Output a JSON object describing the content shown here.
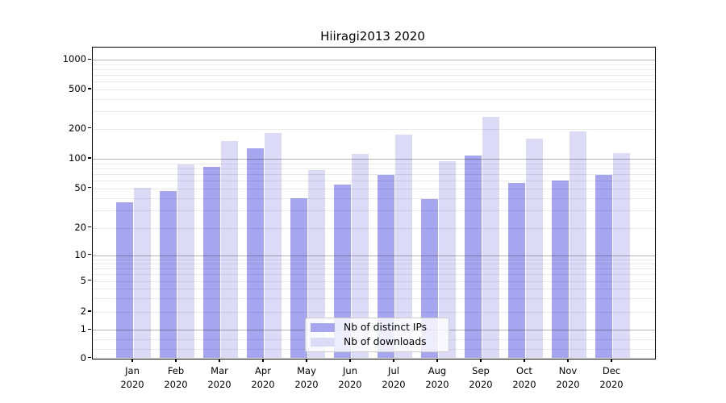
{
  "chart_data": {
    "type": "bar",
    "title": "Hiiragi2013 2020",
    "categories": [
      "Jan 2020",
      "Feb 2020",
      "Mar 2020",
      "Apr 2020",
      "May 2020",
      "Jun 2020",
      "Jul 2020",
      "Aug 2020",
      "Sep 2020",
      "Oct 2020",
      "Nov 2020",
      "Dec 2020"
    ],
    "months": [
      "Jan",
      "Feb",
      "Mar",
      "Apr",
      "May",
      "Jun",
      "Jul",
      "Aug",
      "Sep",
      "Oct",
      "Nov",
      "Dec"
    ],
    "year": "2020",
    "series": [
      {
        "name": "Nb of distinct IPs",
        "color": "#a6a6f0",
        "values": [
          36,
          47,
          83,
          128,
          40,
          55,
          69,
          39,
          107,
          57,
          60,
          69
        ]
      },
      {
        "name": "Nb of downloads",
        "color": "#dbdbf8",
        "values": [
          51,
          87,
          150,
          181,
          77,
          112,
          176,
          94,
          263,
          160,
          187,
          113
        ]
      }
    ],
    "xlabel": "",
    "ylabel": "",
    "yscale": "symlog",
    "y_ticks": [
      0,
      1,
      2,
      5,
      10,
      20,
      50,
      100,
      200,
      500,
      1000
    ],
    "ylim": [
      0,
      1300
    ],
    "grid": "horizontal, major and minor, drawn over bars",
    "legend_position": "lower center"
  }
}
